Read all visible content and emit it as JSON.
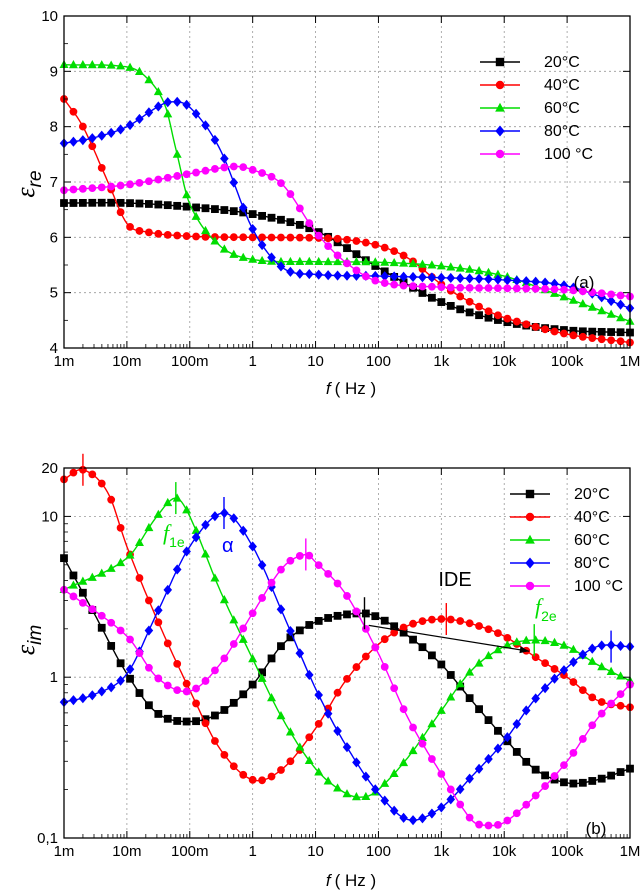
{
  "chart_data": [
    {
      "type": "line",
      "panel_label": "(a)",
      "xlabel_var": "f",
      "xlabel_unit": "( Hz )",
      "ylabel_main": "ε",
      "ylabel_sub": "re",
      "xscale": "log",
      "xlim": [
        0.001,
        1000000
      ],
      "ylim": [
        4,
        10
      ],
      "x_tick_values": [
        0.001,
        0.01,
        0.1,
        1,
        10,
        100,
        1000,
        10000,
        100000,
        1000000
      ],
      "x_tick_labels": [
        "1m",
        "10m",
        "100m",
        "1",
        "10",
        "100",
        "1k",
        "10k",
        "100k",
        "1M"
      ],
      "y_tick_values": [
        4,
        5,
        6,
        7,
        8,
        9,
        10
      ],
      "y_tick_labels": [
        "4",
        "5",
        "6",
        "7",
        "8",
        "9",
        "10"
      ],
      "grid": true,
      "legend_position": "top-right",
      "series": [
        {
          "name": "20°C",
          "color": "#000000",
          "marker": "square",
          "points": [
            [
              0.001,
              6.62
            ],
            [
              0.01,
              6.62
            ],
            [
              0.1,
              6.55
            ],
            [
              1,
              6.42
            ],
            [
              10,
              6.12
            ],
            [
              100,
              5.45
            ],
            [
              1000,
              4.83
            ],
            [
              10000,
              4.48
            ],
            [
              100000,
              4.32
            ],
            [
              1000000,
              4.28
            ]
          ]
        },
        {
          "name": "40°C",
          "color": "#ff0000",
          "marker": "circle",
          "points": [
            [
              0.001,
              8.5
            ],
            [
              0.002,
              8.0
            ],
            [
              0.005,
              7.0
            ],
            [
              0.01,
              6.25
            ],
            [
              0.02,
              6.1
            ],
            [
              0.1,
              6.02
            ],
            [
              1,
              6.0
            ],
            [
              10,
              5.99
            ],
            [
              30,
              5.96
            ],
            [
              100,
              5.85
            ],
            [
              300,
              5.62
            ],
            [
              1000,
              5.15
            ],
            [
              3000,
              4.82
            ],
            [
              10000,
              4.55
            ],
            [
              100000,
              4.25
            ],
            [
              1000000,
              4.1
            ]
          ]
        },
        {
          "name": "60°C",
          "color": "#00dd00",
          "marker": "triangle",
          "points": [
            [
              0.001,
              9.12
            ],
            [
              0.01,
              9.08
            ],
            [
              0.02,
              8.9
            ],
            [
              0.04,
              8.4
            ],
            [
              0.06,
              7.6
            ],
            [
              0.1,
              6.6
            ],
            [
              0.3,
              5.85
            ],
            [
              1,
              5.6
            ],
            [
              10,
              5.56
            ],
            [
              100,
              5.55
            ],
            [
              1000,
              5.48
            ],
            [
              10000,
              5.3
            ],
            [
              100000,
              4.9
            ],
            [
              1000000,
              4.48
            ]
          ]
        },
        {
          "name": "80°C",
          "color": "#0000ff",
          "marker": "diamond",
          "points": [
            [
              0.001,
              7.7
            ],
            [
              0.003,
              7.8
            ],
            [
              0.01,
              8.0
            ],
            [
              0.03,
              8.35
            ],
            [
              0.05,
              8.45
            ],
            [
              0.1,
              8.35
            ],
            [
              0.3,
              7.6
            ],
            [
              1,
              6.15
            ],
            [
              3,
              5.45
            ],
            [
              10,
              5.33
            ],
            [
              100,
              5.3
            ],
            [
              1000,
              5.27
            ],
            [
              10000,
              5.23
            ],
            [
              100000,
              5.12
            ],
            [
              1000000,
              4.72
            ]
          ]
        },
        {
          "name": "100 °C",
          "color": "#ff00ff",
          "marker": "circle",
          "points": [
            [
              0.001,
              6.85
            ],
            [
              0.01,
              6.95
            ],
            [
              0.1,
              7.15
            ],
            [
              0.5,
              7.28
            ],
            [
              1,
              7.22
            ],
            [
              3,
              6.95
            ],
            [
              10,
              6.1
            ],
            [
              30,
              5.55
            ],
            [
              100,
              5.2
            ],
            [
              1000,
              5.1
            ],
            [
              10000,
              5.08
            ],
            [
              100000,
              5.05
            ],
            [
              1000000,
              4.93
            ]
          ]
        }
      ]
    },
    {
      "type": "line",
      "panel_label": "(b)",
      "xlabel_var": "f",
      "xlabel_unit": "( Hz )",
      "ylabel_main": "ε",
      "ylabel_sub": "im",
      "xscale": "log",
      "yscale": "log",
      "xlim": [
        0.001,
        1000000
      ],
      "ylim": [
        0.1,
        20
      ],
      "x_tick_values": [
        0.001,
        0.01,
        0.1,
        1,
        10,
        100,
        1000,
        10000,
        100000,
        1000000
      ],
      "x_tick_labels": [
        "1m",
        "10m",
        "100m",
        "1",
        "10",
        "100",
        "1k",
        "10k",
        "100k",
        "1M"
      ],
      "y_tick_values": [
        0.1,
        1,
        10,
        20
      ],
      "y_tick_labels": [
        "0,1",
        "1",
        "10",
        "20"
      ],
      "grid": true,
      "legend_position": "top-right",
      "annotations": {
        "ide_label": "IDE",
        "f1e_main": "f",
        "f1e_sub": "1e",
        "f2e_main": "f",
        "f2e_sub": "2e",
        "alpha": "α"
      },
      "series": [
        {
          "name": "20°C",
          "color": "#000000",
          "marker": "square",
          "points": [
            [
              0.001,
              5.5
            ],
            [
              0.003,
              2.5
            ],
            [
              0.01,
              1.05
            ],
            [
              0.03,
              0.6
            ],
            [
              0.1,
              0.53
            ],
            [
              0.3,
              0.6
            ],
            [
              1,
              0.9
            ],
            [
              3,
              1.6
            ],
            [
              10,
              2.2
            ],
            [
              50,
              2.5
            ],
            [
              100,
              2.35
            ],
            [
              300,
              1.8
            ],
            [
              1000,
              1.2
            ],
            [
              3000,
              0.72
            ],
            [
              10000,
              0.42
            ],
            [
              30000,
              0.27
            ],
            [
              100000,
              0.22
            ],
            [
              300000,
              0.23
            ],
            [
              1000000,
              0.27
            ]
          ]
        },
        {
          "name": "40°C",
          "color": "#ff0000",
          "marker": "circle",
          "points": [
            [
              0.001,
              17
            ],
            [
              0.002,
              19.5
            ],
            [
              0.005,
              14
            ],
            [
              0.01,
              6.5
            ],
            [
              0.03,
              2.3
            ],
            [
              0.1,
              0.83
            ],
            [
              0.3,
              0.36
            ],
            [
              1,
              0.23
            ],
            [
              3,
              0.27
            ],
            [
              10,
              0.48
            ],
            [
              30,
              0.95
            ],
            [
              100,
              1.6
            ],
            [
              300,
              2.1
            ],
            [
              1000,
              2.3
            ],
            [
              3000,
              2.15
            ],
            [
              10000,
              1.8
            ],
            [
              30000,
              1.35
            ],
            [
              100000,
              1.0
            ],
            [
              300000,
              0.72
            ],
            [
              1000000,
              0.65
            ]
          ]
        },
        {
          "name": "60°C",
          "color": "#00dd00",
          "marker": "triangle",
          "points": [
            [
              0.001,
              3.5
            ],
            [
              0.01,
              5.5
            ],
            [
              0.03,
              10
            ],
            [
              0.06,
              13
            ],
            [
              0.1,
              10
            ],
            [
              0.3,
              3.5
            ],
            [
              1,
              1.3
            ],
            [
              3,
              0.55
            ],
            [
              10,
              0.27
            ],
            [
              30,
              0.19
            ],
            [
              60,
              0.18
            ],
            [
              100,
              0.2
            ],
            [
              300,
              0.32
            ],
            [
              1000,
              0.62
            ],
            [
              3000,
              1.1
            ],
            [
              10000,
              1.55
            ],
            [
              30000,
              1.7
            ],
            [
              100000,
              1.55
            ],
            [
              300000,
              1.2
            ],
            [
              1000000,
              0.95
            ]
          ]
        },
        {
          "name": "80°C",
          "color": "#0000ff",
          "marker": "diamond",
          "points": [
            [
              0.001,
              0.7
            ],
            [
              0.003,
              0.78
            ],
            [
              0.01,
              1.05
            ],
            [
              0.03,
              2.5
            ],
            [
              0.1,
              6.5
            ],
            [
              0.35,
              10.5
            ],
            [
              1,
              6.5
            ],
            [
              3,
              2.5
            ],
            [
              10,
              0.85
            ],
            [
              30,
              0.38
            ],
            [
              100,
              0.19
            ],
            [
              300,
              0.13
            ],
            [
              1000,
              0.155
            ],
            [
              3000,
              0.24
            ],
            [
              10000,
              0.4
            ],
            [
              30000,
              0.72
            ],
            [
              100000,
              1.15
            ],
            [
              300000,
              1.55
            ],
            [
              1000000,
              1.55
            ]
          ]
        },
        {
          "name": "100 °C",
          "color": "#ff00ff",
          "marker": "circle",
          "points": [
            [
              0.001,
              3.5
            ],
            [
              0.01,
              1.8
            ],
            [
              0.03,
              1.0
            ],
            [
              0.1,
              0.82
            ],
            [
              0.3,
              1.2
            ],
            [
              1,
              2.5
            ],
            [
              3,
              4.8
            ],
            [
              7,
              5.8
            ],
            [
              10,
              5.2
            ],
            [
              30,
              3.3
            ],
            [
              100,
              1.4
            ],
            [
              300,
              0.55
            ],
            [
              1000,
              0.25
            ],
            [
              3000,
              0.13
            ],
            [
              5000,
              0.12
            ],
            [
              10000,
              0.125
            ],
            [
              30000,
              0.18
            ],
            [
              100000,
              0.3
            ],
            [
              300000,
              0.55
            ],
            [
              1000000,
              0.9
            ]
          ]
        }
      ]
    }
  ]
}
